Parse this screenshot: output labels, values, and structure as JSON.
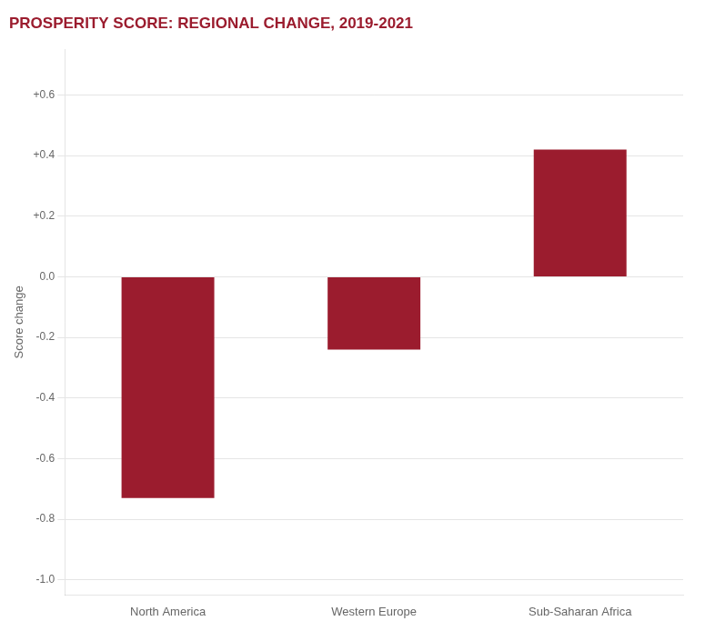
{
  "chart_data": {
    "type": "bar",
    "title": "PROSPERITY SCORE: REGIONAL CHANGE, 2019-2021",
    "categories": [
      "North America",
      "Western Europe",
      "Sub-Saharan Africa"
    ],
    "values": [
      -0.73,
      -0.24,
      0.42
    ],
    "color": "#9B1C2E",
    "ylabel": "Score change",
    "ylim": [
      -1.05,
      0.75
    ],
    "yticks": [
      {
        "value": 0.6,
        "label": "+0.6"
      },
      {
        "value": 0.4,
        "label": "+0.4"
      },
      {
        "value": 0.2,
        "label": "+0.2"
      },
      {
        "value": 0,
        "label": "0.0"
      },
      -0.2,
      -0.4,
      -0.6,
      -0.8,
      {
        "value": -1,
        "label": "-1.0"
      }
    ],
    "grid": true
  }
}
